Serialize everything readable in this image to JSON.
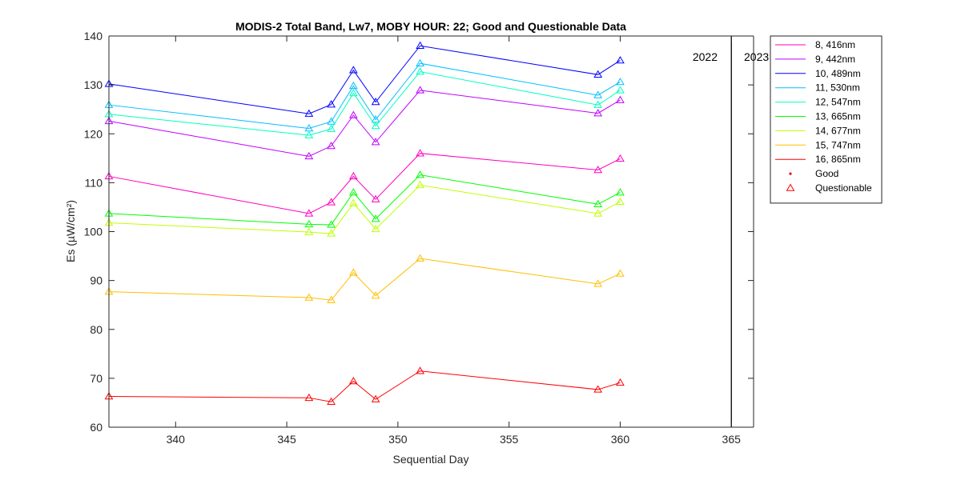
{
  "chart_data": {
    "type": "line",
    "title": "MODIS-2 Total Band,  Lw7, MOBY HOUR: 22;  Good and Questionable Data",
    "xlabel": "Sequential Day",
    "ylabel": "Es (µW/cm²)",
    "xlim": [
      337,
      366
    ],
    "ylim": [
      60,
      140
    ],
    "xticks": [
      340,
      345,
      350,
      355,
      360,
      365
    ],
    "yticks": [
      60,
      70,
      80,
      90,
      100,
      110,
      120,
      130,
      140
    ],
    "grid": false,
    "legend_position": "outside-top-right",
    "year_boundary": {
      "x": 365,
      "labels": [
        "2022",
        "2023"
      ]
    },
    "x": [
      337,
      346,
      347,
      348,
      349,
      351,
      359,
      360
    ],
    "series": [
      {
        "name": "8, 416nm",
        "color": "#ff00bf",
        "marker": "triangle",
        "values": [
          111.3,
          103.7,
          106.0,
          111.3,
          106.6,
          116.0,
          112.6,
          114.9
        ]
      },
      {
        "name": "9, 442nm",
        "color": "#bf00ff",
        "marker": "triangle",
        "values": [
          122.6,
          115.4,
          117.5,
          123.8,
          118.3,
          128.9,
          124.2,
          126.9
        ]
      },
      {
        "name": "10, 489nm",
        "color": "#0000ff",
        "marker": "triangle",
        "values": [
          130.2,
          124.1,
          126.0,
          133.0,
          126.5,
          138.0,
          132.1,
          135.0
        ]
      },
      {
        "name": "11, 530nm",
        "color": "#00bfff",
        "marker": "triangle",
        "values": [
          125.9,
          121.1,
          122.5,
          129.8,
          122.9,
          134.4,
          127.9,
          130.6
        ]
      },
      {
        "name": "12, 547nm",
        "color": "#00ffbf",
        "marker": "triangle",
        "values": [
          124.0,
          119.7,
          121.0,
          128.3,
          121.6,
          132.7,
          125.9,
          128.9
        ]
      },
      {
        "name": "13, 665nm",
        "color": "#00ff00",
        "marker": "triangle",
        "values": [
          103.7,
          101.5,
          101.4,
          108.0,
          102.6,
          111.6,
          105.6,
          108.0
        ]
      },
      {
        "name": "14, 677nm",
        "color": "#bfff00",
        "marker": "triangle",
        "values": [
          101.8,
          99.9,
          99.6,
          105.8,
          100.5,
          109.5,
          103.7,
          106.1
        ]
      },
      {
        "name": "15, 747nm",
        "color": "#ffbf00",
        "marker": "triangle",
        "values": [
          87.7,
          86.5,
          86.0,
          91.6,
          86.9,
          94.5,
          89.3,
          91.4
        ]
      },
      {
        "name": "16, 865nm",
        "color": "#ff0000",
        "marker": "triangle",
        "values": [
          66.3,
          66.0,
          65.2,
          69.4,
          65.7,
          71.5,
          67.7,
          69.1
        ]
      }
    ],
    "legend_extra": [
      {
        "name": "Good",
        "color": "#ff0000",
        "marker": "point"
      },
      {
        "name": "Questionable",
        "color": "#ff0000",
        "marker": "triangle"
      }
    ]
  }
}
